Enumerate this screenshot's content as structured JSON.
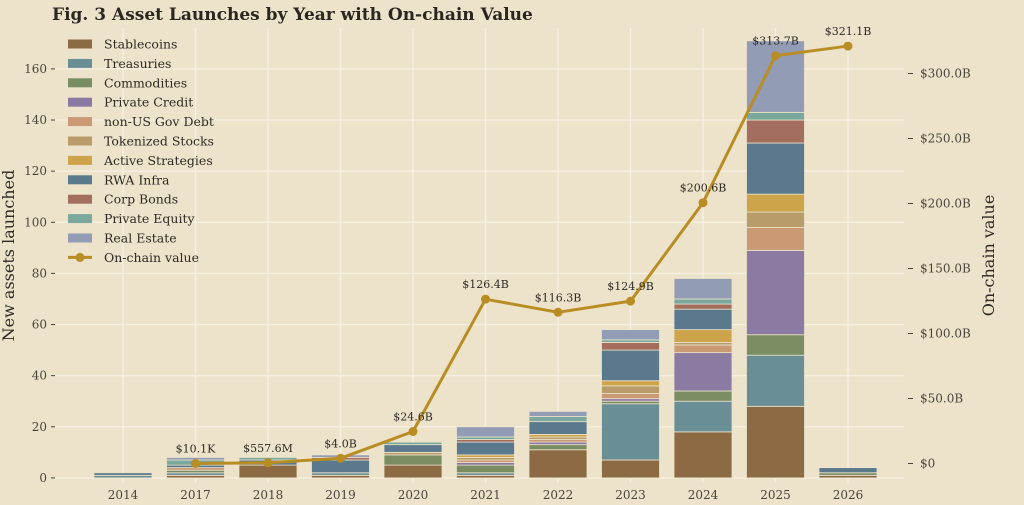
{
  "chart_data": {
    "type": "bar",
    "stacked": true,
    "title": "Fig. 3  Asset Launches by Year with On-chain Value",
    "ylabel": "New assets launched",
    "y2label": "On-chain value",
    "categories": [
      "2014",
      "2017",
      "2018",
      "2019",
      "2020",
      "2021",
      "2022",
      "2023",
      "2024",
      "2025",
      "2026"
    ],
    "ylim": [
      -2,
      176
    ],
    "yticks": [
      0,
      20,
      40,
      60,
      80,
      100,
      120,
      140,
      160
    ],
    "y2lim": [
      -15,
      335
    ],
    "y2ticks": [
      0,
      50,
      100,
      150,
      200,
      250,
      300
    ],
    "y2tick_labels": [
      "$0",
      "$50.0B",
      "$100.0B",
      "$150.0B",
      "$200.0B",
      "$250.0B",
      "$300.0B"
    ],
    "grid": true,
    "legend_position": "top-left",
    "series": [
      {
        "name": "Stablecoins",
        "color": "#8c6a43",
        "values": [
          0,
          1,
          5,
          1,
          5,
          1,
          11,
          7,
          18,
          28,
          1
        ]
      },
      {
        "name": "Treasuries",
        "color": "#6a8e96",
        "values": [
          1,
          1,
          0,
          1,
          0,
          1,
          0,
          22,
          12,
          20,
          0
        ]
      },
      {
        "name": "Commodities",
        "color": "#7a8c62",
        "values": [
          0,
          1,
          0,
          0,
          4,
          3,
          2,
          1,
          4,
          8,
          1
        ]
      },
      {
        "name": "Private Credit",
        "color": "#8b7ba3",
        "values": [
          0,
          0,
          0,
          0,
          0,
          1,
          1,
          1,
          15,
          33,
          0
        ]
      },
      {
        "name": "non-US Gov Debt",
        "color": "#c99a74",
        "values": [
          0,
          1,
          0,
          0,
          0,
          1,
          1,
          2,
          3,
          9,
          0
        ]
      },
      {
        "name": "Tokenized Stocks",
        "color": "#b89d6b",
        "values": [
          0,
          0,
          0,
          0,
          1,
          1,
          1,
          3,
          1,
          6,
          0
        ]
      },
      {
        "name": "Active Strategies",
        "color": "#cda44a",
        "values": [
          0,
          0,
          0,
          0,
          0,
          1,
          1,
          2,
          5,
          7,
          0
        ]
      },
      {
        "name": "RWA Infra",
        "color": "#5b798c",
        "values": [
          1,
          1,
          2,
          5,
          3,
          5,
          5,
          12,
          8,
          20,
          2
        ]
      },
      {
        "name": "Corp Bonds",
        "color": "#a46e5e",
        "values": [
          0,
          0,
          0,
          1,
          0,
          1,
          0,
          3,
          2,
          9,
          0
        ]
      },
      {
        "name": "Private Equity",
        "color": "#7aa89c",
        "values": [
          0,
          2,
          1,
          0,
          1,
          1,
          2,
          1,
          2,
          3,
          0
        ]
      },
      {
        "name": "Real Estate",
        "color": "#929cb5",
        "values": [
          0,
          1,
          0,
          1,
          0,
          4,
          2,
          4,
          8,
          28,
          0
        ]
      }
    ],
    "line": {
      "name": "On-chain value",
      "color": "#b88d24",
      "categories": [
        "2017",
        "2018",
        "2019",
        "2020",
        "2021",
        "2022",
        "2023",
        "2024",
        "2025",
        "2026"
      ],
      "values": [
        1e-05,
        0.5576,
        4.0,
        24.6,
        126.4,
        116.3,
        124.9,
        200.6,
        313.7,
        321.1
      ],
      "labels": [
        "$10.1K",
        "$557.6M",
        "$4.0B",
        "$24.6B",
        "$126.4B",
        "$116.3B",
        "$124.9B",
        "$200.6B",
        "$313.7B",
        "$321.1B"
      ]
    }
  }
}
